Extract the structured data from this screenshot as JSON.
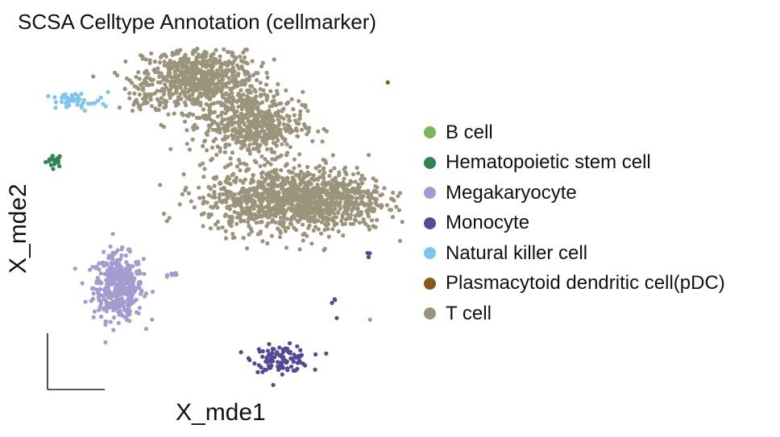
{
  "chart_data": {
    "type": "scatter",
    "title": "SCSA Celltype Annotation (cellmarker)",
    "xlabel": "X_mde1",
    "ylabel": "X_mde2",
    "grid": false,
    "legend_position": "right",
    "series": [
      {
        "name": "B cell",
        "color": "#7ab65a",
        "clusters": [
          {
            "cx": 0.93,
            "cy": 0.18,
            "sx": 0.002,
            "sy": 0.002,
            "n": 1
          }
        ]
      },
      {
        "name": "Hematopoietic stem cell",
        "color": "#2e8750",
        "clusters": [
          {
            "cx": 0.04,
            "cy": 0.67,
            "sx": 0.012,
            "sy": 0.01,
            "n": 20
          }
        ]
      },
      {
        "name": "Megakaryocyte",
        "color": "#a59bd0",
        "clusters": [
          {
            "cx": 0.22,
            "cy": 0.28,
            "sx": 0.035,
            "sy": 0.05,
            "n": 420
          },
          {
            "cx": 0.38,
            "cy": 0.32,
            "sx": 0.01,
            "sy": 0.003,
            "n": 10
          }
        ]
      },
      {
        "name": "Monocyte",
        "color": "#574797",
        "clusters": [
          {
            "cx": 0.68,
            "cy": 0.06,
            "sx": 0.04,
            "sy": 0.02,
            "n": 110
          },
          {
            "cx": 0.83,
            "cy": 0.23,
            "sx": 0.01,
            "sy": 0.02,
            "n": 4
          },
          {
            "cx": 0.92,
            "cy": 0.38,
            "sx": 0.004,
            "sy": 0.01,
            "n": 3
          }
        ]
      },
      {
        "name": "Natural killer cell",
        "color": "#7ec5ee",
        "clusters": [
          {
            "cx": 0.09,
            "cy": 0.85,
            "sx": 0.05,
            "sy": 0.015,
            "n": 50
          }
        ]
      },
      {
        "name": "Plasmacytoid dendritic cell(pDC)",
        "color": "#845a1b",
        "clusters": [
          {
            "cx": 0.98,
            "cy": 0.91,
            "sx": 0.002,
            "sy": 0.002,
            "n": 1
          }
        ]
      },
      {
        "name": "T cell",
        "color": "#9b947b",
        "clusters": [
          {
            "cx": 0.45,
            "cy": 0.92,
            "sx": 0.08,
            "sy": 0.05,
            "n": 700
          },
          {
            "cx": 0.6,
            "cy": 0.78,
            "sx": 0.07,
            "sy": 0.05,
            "n": 500
          },
          {
            "cx": 0.72,
            "cy": 0.55,
            "sx": 0.13,
            "sy": 0.05,
            "n": 1200
          },
          {
            "cx": 0.29,
            "cy": 0.87,
            "sx": 0.02,
            "sy": 0.02,
            "n": 40
          }
        ]
      }
    ]
  },
  "legend": {
    "items": [
      {
        "label": "B cell",
        "color": "#7ab65a"
      },
      {
        "label": "Hematopoietic stem cell",
        "color": "#2e8750"
      },
      {
        "label": "Megakaryocyte",
        "color": "#a59bd0"
      },
      {
        "label": "Monocyte",
        "color": "#574797"
      },
      {
        "label": "Natural killer cell",
        "color": "#7ec5ee"
      },
      {
        "label": "Plasmacytoid dendritic cell(pDC)",
        "color": "#845a1b"
      },
      {
        "label": "T cell",
        "color": "#9b947b"
      }
    ]
  }
}
